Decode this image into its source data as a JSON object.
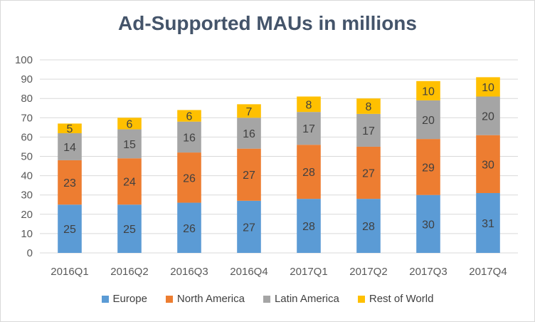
{
  "chart_data": {
    "type": "bar",
    "stacked": true,
    "title": "Ad-Supported MAUs in millions",
    "xlabel": "",
    "ylabel": "",
    "categories": [
      "2016Q1",
      "2016Q2",
      "2016Q3",
      "2016Q4",
      "2017Q1",
      "2017Q2",
      "2017Q3",
      "2017Q4"
    ],
    "series": [
      {
        "name": "Europe",
        "color": "#5b9bd5",
        "values": [
          25,
          25,
          26,
          27,
          28,
          28,
          30,
          31
        ]
      },
      {
        "name": "North America",
        "color": "#ed7d31",
        "values": [
          23,
          24,
          26,
          27,
          28,
          27,
          29,
          30
        ]
      },
      {
        "name": "Latin America",
        "color": "#a5a5a5",
        "values": [
          14,
          15,
          16,
          16,
          17,
          17,
          20,
          20
        ]
      },
      {
        "name": "Rest of World",
        "color": "#ffc000",
        "values": [
          5,
          6,
          6,
          7,
          8,
          8,
          10,
          10
        ]
      }
    ],
    "ylim": [
      0,
      100
    ],
    "yticks": [
      0,
      10,
      20,
      30,
      40,
      50,
      60,
      70,
      80,
      90,
      100
    ],
    "grid": true,
    "legend_position": "bottom"
  }
}
